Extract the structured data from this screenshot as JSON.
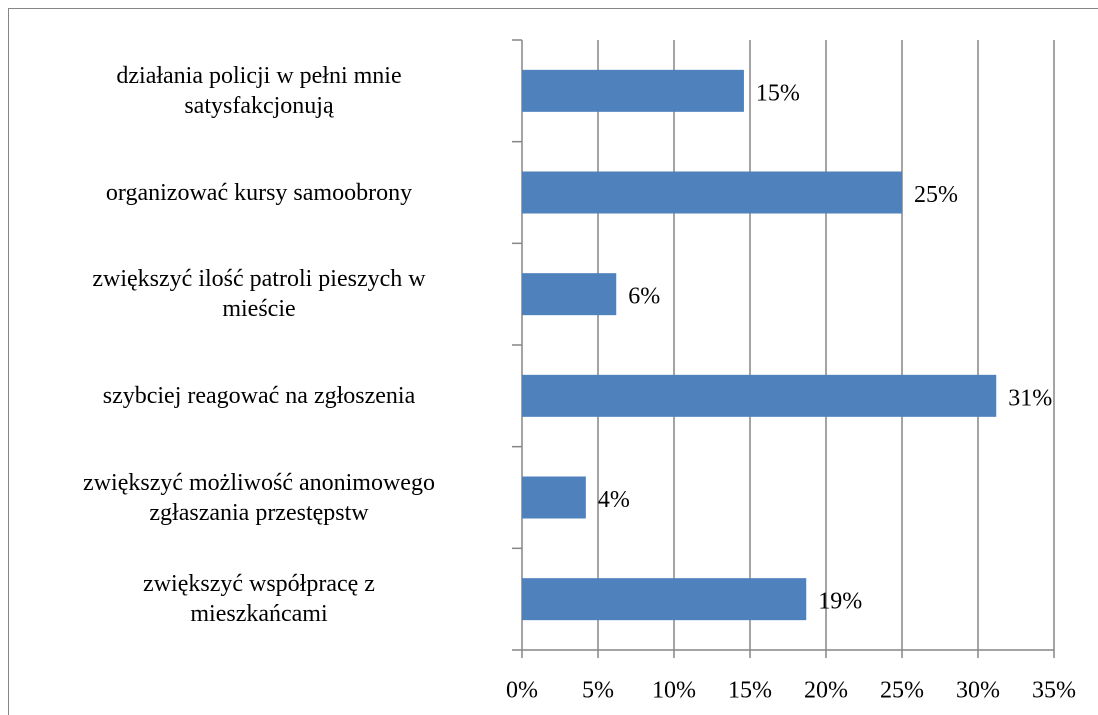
{
  "chart_data": {
    "type": "barh",
    "categories": [
      "działania policji w pełni mnie\nsatysfakcjonują",
      "organizować kursy samoobrony",
      "zwiększyć ilość patroli pieszych w\nmieście",
      "szybciej reagować na zgłoszenia",
      "zwiększyć możliwość anonimowego\nzgłaszania przestępstw",
      "zwiększyć współpracę z\nmieszkańcami"
    ],
    "values": [
      14.6,
      25,
      6.2,
      31.2,
      4.2,
      18.7
    ],
    "value_labels": [
      "15%",
      "25%",
      "6%",
      "31%",
      "4%",
      "19%"
    ],
    "color": "#4f81bd",
    "xlim": [
      0,
      35
    ],
    "xticks": [
      {
        "value": 0,
        "label": "0%"
      },
      {
        "value": 5,
        "label": "5%"
      },
      {
        "value": 10,
        "label": "10%"
      },
      {
        "value": 15,
        "label": "15%"
      },
      {
        "value": 20,
        "label": "20%"
      },
      {
        "value": 25,
        "label": "25%"
      },
      {
        "value": 30,
        "label": "30%"
      },
      {
        "value": 35,
        "label": "35%"
      }
    ],
    "grid": true
  }
}
